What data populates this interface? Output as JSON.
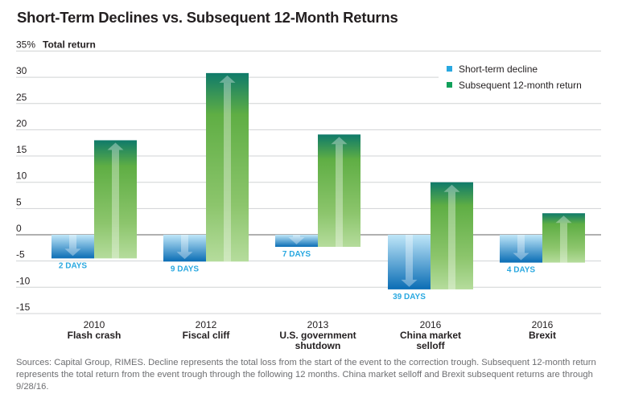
{
  "chart_data": {
    "type": "bar",
    "title": "Short-Term Declines vs. Subsequent 12-Month Returns",
    "ylabel": "Total return",
    "ylabel_unit": "%",
    "xlabel": "",
    "ylim": [
      -15,
      35
    ],
    "yticks": [
      35,
      30,
      25,
      20,
      15,
      10,
      5,
      0,
      -5,
      -10,
      -15
    ],
    "ytick_labels": [
      "35%",
      "30",
      "25",
      "20",
      "15",
      "10",
      "5",
      "0",
      "-5",
      "-10",
      "-15"
    ],
    "grid": true,
    "legend_position": "top-right",
    "categories": [
      {
        "year": "2010",
        "name_lines": [
          "Flash crash"
        ]
      },
      {
        "year": "2012",
        "name_lines": [
          "Fiscal cliff"
        ]
      },
      {
        "year": "2013",
        "name_lines": [
          "U.S. government",
          "shutdown"
        ]
      },
      {
        "year": "2016",
        "name_lines": [
          "China market",
          "selloff"
        ]
      },
      {
        "year": "2016",
        "name_lines": [
          "Brexit"
        ]
      }
    ],
    "series": [
      {
        "name": "Short-term decline",
        "color": "#29a8e0",
        "values": [
          -4.5,
          -5.1,
          -2.3,
          -10.4,
          -5.3
        ],
        "labels": [
          "2 DAYS",
          "9 DAYS",
          "7 DAYS",
          "39 DAYS",
          "4 DAYS"
        ]
      },
      {
        "name": "Subsequent 12-month return",
        "color": "#10a05a",
        "values": [
          18.0,
          30.8,
          19.1,
          10.0,
          4.1
        ]
      }
    ]
  },
  "footnote": "Sources: Capital Group, RIMES. Decline represents the total loss from the start of the event to the correction trough. Subsequent 12-month return represents the total return from the event trough through the following 12 months. China market selloff and Brexit subsequent returns are through 9/28/16."
}
